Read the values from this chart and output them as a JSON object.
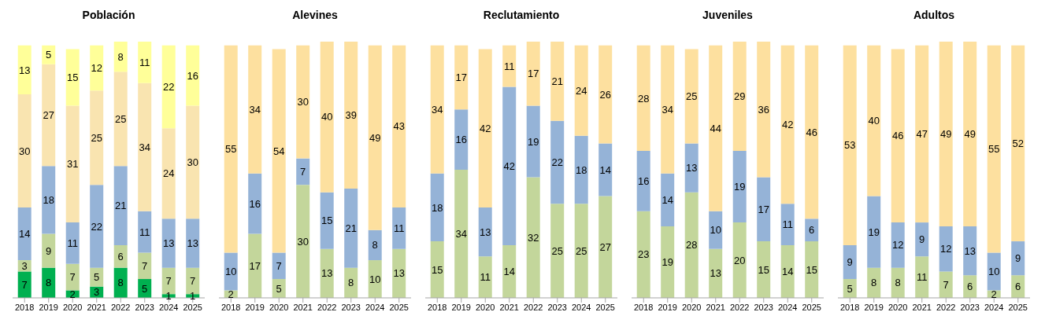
{
  "chart_data": [
    {
      "type": "bar",
      "title": "Población",
      "categories": [
        "2018",
        "2019",
        "2020",
        "2021",
        "2022",
        "2023",
        "2024",
        "2025"
      ],
      "stacked": true,
      "data_labels": true,
      "grid": false,
      "legend": false,
      "series": [
        {
          "color": "#00b050",
          "values": [
            7,
            8,
            2,
            3,
            8,
            5,
            1,
            1
          ]
        },
        {
          "color": "#c3d69b",
          "values": [
            3,
            9,
            7,
            5,
            6,
            7,
            7,
            7
          ]
        },
        {
          "color": "#95b3d7",
          "values": [
            14,
            18,
            11,
            22,
            21,
            11,
            13,
            13
          ]
        },
        {
          "color": "#f9e4b0",
          "values": [
            30,
            27,
            31,
            25,
            25,
            34,
            24,
            30
          ]
        },
        {
          "color": "#ffff99",
          "values": [
            13,
            5,
            15,
            12,
            8,
            11,
            22,
            16
          ]
        }
      ]
    },
    {
      "type": "bar",
      "title": "Alevines",
      "categories": [
        "2018",
        "2019",
        "2020",
        "2021",
        "2022",
        "2023",
        "2024",
        "2025"
      ],
      "stacked": true,
      "data_labels": true,
      "grid": false,
      "legend": false,
      "series": [
        {
          "color": "#c3d69b",
          "values": [
            2,
            17,
            5,
            30,
            13,
            8,
            10,
            13
          ]
        },
        {
          "color": "#95b3d7",
          "values": [
            10,
            16,
            7,
            7,
            15,
            21,
            8,
            11
          ]
        },
        {
          "color": "#fde09f",
          "values": [
            55,
            34,
            54,
            30,
            40,
            39,
            49,
            43
          ]
        }
      ]
    },
    {
      "type": "bar",
      "title": "Reclutamiento",
      "categories": [
        "2018",
        "2019",
        "2020",
        "2021",
        "2022",
        "2023",
        "2024",
        "2025"
      ],
      "stacked": true,
      "data_labels": true,
      "grid": false,
      "legend": false,
      "series": [
        {
          "color": "#c3d69b",
          "values": [
            15,
            34,
            11,
            14,
            32,
            25,
            25,
            27
          ]
        },
        {
          "color": "#95b3d7",
          "values": [
            18,
            16,
            13,
            42,
            19,
            22,
            18,
            14
          ]
        },
        {
          "color": "#fde09f",
          "values": [
            34,
            17,
            42,
            11,
            17,
            21,
            24,
            26
          ]
        }
      ]
    },
    {
      "type": "bar",
      "title": "Juveniles",
      "categories": [
        "2018",
        "2019",
        "2020",
        "2021",
        "2022",
        "2023",
        "2024",
        "2025"
      ],
      "stacked": true,
      "data_labels": true,
      "grid": false,
      "legend": false,
      "series": [
        {
          "color": "#c3d69b",
          "values": [
            23,
            19,
            28,
            13,
            20,
            15,
            14,
            15
          ]
        },
        {
          "color": "#95b3d7",
          "values": [
            16,
            14,
            13,
            10,
            19,
            17,
            11,
            6
          ]
        },
        {
          "color": "#fde09f",
          "values": [
            28,
            34,
            25,
            44,
            29,
            36,
            42,
            46
          ]
        }
      ]
    },
    {
      "type": "bar",
      "title": "Adultos",
      "categories": [
        "2018",
        "2019",
        "2020",
        "2021",
        "2022",
        "2023",
        "2024",
        "2025"
      ],
      "stacked": true,
      "data_labels": true,
      "grid": false,
      "legend": false,
      "series": [
        {
          "color": "#c3d69b",
          "values": [
            5,
            8,
            8,
            11,
            7,
            6,
            2,
            6
          ]
        },
        {
          "color": "#95b3d7",
          "values": [
            9,
            19,
            12,
            9,
            12,
            13,
            10,
            9
          ]
        },
        {
          "color": "#fde09f",
          "values": [
            53,
            40,
            46,
            47,
            49,
            49,
            55,
            52
          ]
        }
      ]
    }
  ]
}
